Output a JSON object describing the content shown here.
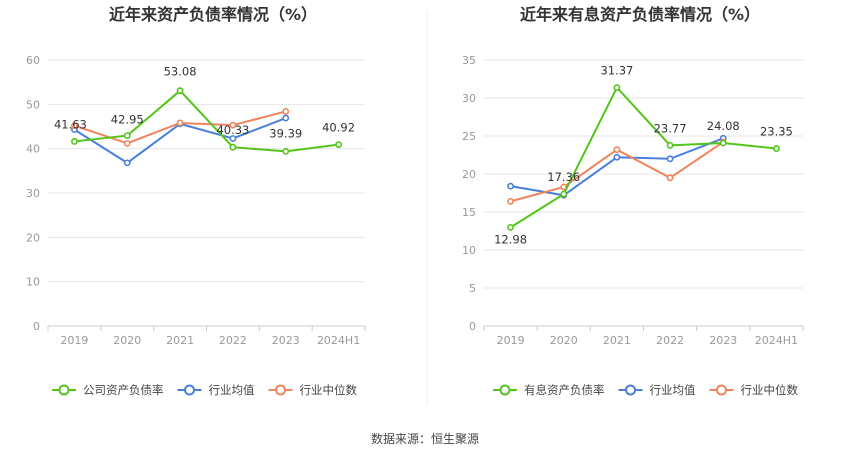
{
  "source_label": "数据来源：恒生聚源",
  "colors": {
    "company": "#52c41a",
    "avg": "#4a7fdc",
    "median": "#f0845c",
    "grid": "#e6e6e6",
    "axis": "#cccccc"
  },
  "chart_data": [
    {
      "type": "line",
      "title": "近年来资产负债率情况（%）",
      "categories": [
        "2019",
        "2020",
        "2021",
        "2022",
        "2023",
        "2024H1"
      ],
      "ylim": [
        0,
        60
      ],
      "yticks": [
        0,
        10,
        20,
        30,
        40,
        50,
        60
      ],
      "grid": true,
      "legend_position": "bottom",
      "series": [
        {
          "key": "company",
          "name": "公司资产负债率",
          "values": [
            41.63,
            42.95,
            53.08,
            40.33,
            39.39,
            40.92
          ],
          "labels": [
            "41.63",
            "42.95",
            "53.08",
            "40.33",
            "39.39",
            "40.92"
          ]
        },
        {
          "key": "avg",
          "name": "行业均值",
          "values": [
            44.3,
            36.8,
            45.6,
            42.3,
            46.9,
            null
          ]
        },
        {
          "key": "median",
          "name": "行业中位数",
          "values": [
            45.2,
            41.2,
            45.8,
            45.3,
            48.4,
            null
          ]
        }
      ]
    },
    {
      "type": "line",
      "title": "近年来有息资产负债率情况（%）",
      "categories": [
        "2019",
        "2020",
        "2021",
        "2022",
        "2023",
        "2024H1"
      ],
      "ylim": [
        0,
        35
      ],
      "yticks": [
        0,
        5,
        10,
        15,
        20,
        25,
        30,
        35
      ],
      "grid": true,
      "legend_position": "bottom",
      "series": [
        {
          "key": "company",
          "name": "有息资产负债率",
          "values": [
            12.98,
            17.36,
            31.37,
            23.77,
            24.08,
            23.35
          ],
          "labels": [
            "12.98",
            "17.36",
            "31.37",
            "23.77",
            "24.08",
            "23.35"
          ]
        },
        {
          "key": "avg",
          "name": "行业均值",
          "values": [
            18.4,
            17.2,
            22.2,
            22.0,
            24.7,
            null
          ]
        },
        {
          "key": "median",
          "name": "行业中位数",
          "values": [
            16.4,
            18.3,
            23.2,
            19.5,
            24.2,
            null
          ]
        }
      ]
    }
  ]
}
